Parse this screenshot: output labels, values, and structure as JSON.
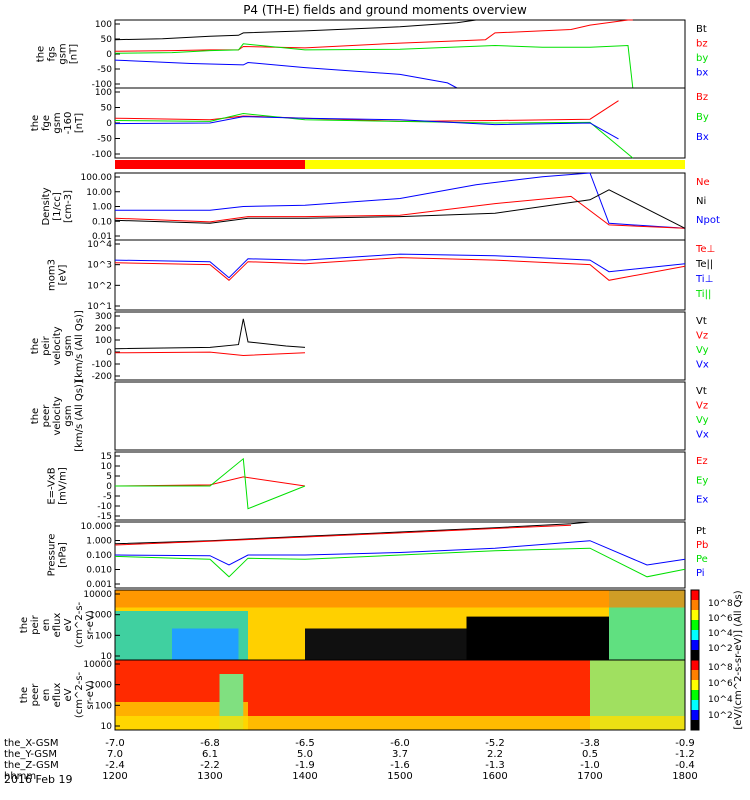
{
  "title": "P4 (TH-E) fields and ground moments overview",
  "date_label": "2016 Feb 19",
  "colors": {
    "black": "#000000",
    "red": "#ff0000",
    "green": "#00e000",
    "blue": "#0000ff",
    "yellow": "#ffff00",
    "bar_red": "#ff0000"
  },
  "chart_data": [
    {
      "type": "line",
      "id": "fgs",
      "ylabel": [
        "the",
        "fgs",
        "gsm",
        "[nT]"
      ],
      "ylim": [
        -100,
        100
      ],
      "ticks": [
        "100",
        "50",
        "0",
        "-50",
        "-100"
      ],
      "legend": [
        {
          "name": "Bt",
          "color": "black"
        },
        {
          "name": "bz",
          "color": "red"
        },
        {
          "name": "by",
          "color": "green"
        },
        {
          "name": "bx",
          "color": "blue"
        }
      ],
      "series": [
        {
          "name": "Bt",
          "color": "black",
          "x": [
            1200,
            1250,
            1300,
            1330,
            1335,
            1400,
            1500,
            1560,
            1580,
            1600
          ],
          "y": [
            42,
            45,
            52,
            55,
            62,
            68,
            80,
            92,
            100,
            100
          ]
        },
        {
          "name": "bz",
          "color": "red",
          "x": [
            1200,
            1260,
            1300,
            1330,
            1335,
            1400,
            1500,
            1590,
            1600,
            1680,
            1700,
            1740,
            1745
          ],
          "y": [
            8,
            10,
            12,
            12,
            22,
            18,
            32,
            42,
            62,
            72,
            85,
            100,
            100
          ]
        },
        {
          "name": "by",
          "color": "green",
          "x": [
            1200,
            1260,
            1300,
            1330,
            1335,
            1400,
            1500,
            1600,
            1650,
            1700,
            1740,
            1745
          ],
          "y": [
            2,
            4,
            10,
            12,
            30,
            12,
            14,
            25,
            20,
            20,
            25,
            -100
          ]
        },
        {
          "name": "bx",
          "color": "blue",
          "x": [
            1200,
            1280,
            1335,
            1340,
            1400,
            1500,
            1550,
            1560
          ],
          "y": [
            -18,
            -28,
            -32,
            -25,
            -40,
            -60,
            -85,
            -100
          ]
        }
      ]
    },
    {
      "type": "line",
      "id": "fge",
      "ylabel": [
        "the",
        "fge",
        "gsm",
        "-160",
        "[nT]"
      ],
      "ylim": [
        -120,
        100
      ],
      "ticks": [
        "100",
        "50",
        "0",
        "-50",
        "-100"
      ],
      "legend": [
        {
          "name": "Bz",
          "color": "red"
        },
        {
          "name": "By",
          "color": "green"
        },
        {
          "name": "Bx",
          "color": "blue"
        }
      ],
      "series": [
        {
          "name": "Bz",
          "color": "red",
          "x": [
            1200,
            1300,
            1335,
            1400,
            1500,
            1600,
            1700,
            1730
          ],
          "y": [
            5,
            0,
            12,
            5,
            -5,
            -2,
            2,
            60
          ]
        },
        {
          "name": "By",
          "color": "green",
          "x": [
            1200,
            1300,
            1335,
            1400,
            1500,
            1600,
            1700,
            1745
          ],
          "y": [
            -2,
            -5,
            20,
            0,
            -5,
            -10,
            -8,
            -120
          ]
        },
        {
          "name": "Bx",
          "color": "blue",
          "x": [
            1200,
            1300,
            1335,
            1400,
            1500,
            1600,
            1700,
            1730
          ],
          "y": [
            -12,
            -10,
            10,
            5,
            0,
            -15,
            -10,
            -60
          ]
        }
      ]
    },
    {
      "type": "bar",
      "id": "mode",
      "note": "status bar",
      "segments": [
        {
          "from": 1200,
          "to": 1400,
          "color": "bar_red"
        },
        {
          "from": 1400,
          "to": 1800,
          "color": "yellow"
        }
      ]
    },
    {
      "type": "line",
      "id": "density",
      "log": true,
      "ylabel": [
        "Density",
        "[1/cc]",
        "[cm-3]"
      ],
      "ylim": [
        0.01,
        100
      ],
      "ticks": [
        "100.00",
        "10.00",
        "1.00",
        "0.10",
        "0.01"
      ],
      "legend": [
        {
          "name": "Ne",
          "color": "red"
        },
        {
          "name": "Ni",
          "color": "black"
        },
        {
          "name": "Npot",
          "color": "blue"
        }
      ],
      "series": [
        {
          "name": "Npot",
          "color": "blue",
          "x": [
            1200,
            1300,
            1335,
            1400,
            1500,
            1580,
            1650,
            1700,
            1720,
            1800
          ],
          "y": [
            0.6,
            0.6,
            1.0,
            1.2,
            3,
            20,
            60,
            100,
            0.1,
            0.05
          ]
        },
        {
          "name": "Ne",
          "color": "red",
          "x": [
            1200,
            1300,
            1340,
            1400,
            1500,
            1600,
            1680,
            1720,
            1800
          ],
          "y": [
            0.2,
            0.12,
            0.25,
            0.25,
            0.3,
            1.5,
            4,
            0.08,
            0.05
          ]
        },
        {
          "name": "Ni",
          "color": "black",
          "x": [
            1200,
            1300,
            1340,
            1400,
            1500,
            1600,
            1700,
            1720,
            1800
          ],
          "y": [
            0.15,
            0.1,
            0.2,
            0.2,
            0.25,
            0.4,
            2.5,
            10,
            0.05
          ]
        }
      ]
    },
    {
      "type": "line",
      "id": "temp",
      "log": true,
      "ylabel": [
        "mom3",
        "[eV]"
      ],
      "ylim": [
        10,
        30000
      ],
      "ticks": [
        "10^4",
        "10^3",
        "10^2",
        "10^1"
      ],
      "legend": [
        {
          "name": "Te⊥",
          "color": "red"
        },
        {
          "name": "Te||",
          "color": "black"
        },
        {
          "name": "Ti⊥",
          "color": "blue"
        },
        {
          "name": "Ti||",
          "color": "green"
        }
      ],
      "series": [
        {
          "name": "Ti",
          "color": "blue",
          "x": [
            1200,
            1300,
            1320,
            1340,
            1400,
            1500,
            1600,
            1700,
            1720,
            1800
          ],
          "y": [
            3000,
            2500,
            400,
            3500,
            3000,
            6000,
            5000,
            3000,
            800,
            2000
          ]
        },
        {
          "name": "Te",
          "color": "red",
          "x": [
            1200,
            1300,
            1320,
            1340,
            1400,
            1500,
            1600,
            1700,
            1720,
            1800
          ],
          "y": [
            2200,
            1800,
            300,
            2500,
            2000,
            4000,
            3000,
            1800,
            300,
            1500
          ]
        }
      ]
    },
    {
      "type": "line",
      "id": "vpeir",
      "ylabel": [
        "the",
        "peir",
        "velocity",
        "gsm",
        "[km/s (All Qs)]"
      ],
      "ylim": [
        -200,
        300
      ],
      "ticks": [
        "300",
        "200",
        "100",
        "0",
        "-100",
        "-200"
      ],
      "legend": [
        {
          "name": "Vt",
          "color": "black"
        },
        {
          "name": "Vz",
          "color": "red"
        },
        {
          "name": "Vy",
          "color": "green"
        },
        {
          "name": "Vx",
          "color": "blue"
        }
      ],
      "series": [
        {
          "name": "Vt",
          "color": "black",
          "x": [
            1200,
            1300,
            1330,
            1335,
            1340,
            1380,
            1400
          ],
          "y": [
            30,
            40,
            60,
            250,
            80,
            50,
            40
          ]
        },
        {
          "name": "Vz",
          "color": "red",
          "x": [
            1200,
            1300,
            1335,
            1400
          ],
          "y": [
            0,
            5,
            -20,
            0
          ]
        }
      ]
    },
    {
      "type": "line",
      "id": "vpeer",
      "ylabel": [
        "the",
        "peer",
        "velocity",
        "gsm",
        "[km/s (All Qs)]"
      ],
      "ylim": [
        -200,
        300
      ],
      "legend": [
        {
          "name": "Vt",
          "color": "black"
        },
        {
          "name": "Vz",
          "color": "red"
        },
        {
          "name": "Vy",
          "color": "green"
        },
        {
          "name": "Vx",
          "color": "blue"
        }
      ],
      "series": []
    },
    {
      "type": "line",
      "id": "efield",
      "ylabel": [
        "E=-VxB",
        "[mV/m]"
      ],
      "ylim": [
        -15,
        15
      ],
      "ticks": [
        "15",
        "10",
        "5",
        "0",
        "-5",
        "-10",
        "-15"
      ],
      "legend": [
        {
          "name": "Ez",
          "color": "red"
        },
        {
          "name": "Ey",
          "color": "green"
        },
        {
          "name": "Ex",
          "color": "blue"
        }
      ],
      "series": [
        {
          "name": "Ez",
          "color": "red",
          "x": [
            1200,
            1300,
            1335,
            1400
          ],
          "y": [
            0,
            0.5,
            4,
            0
          ]
        },
        {
          "name": "Ey",
          "color": "green",
          "x": [
            1200,
            1300,
            1335,
            1340,
            1400
          ],
          "y": [
            0,
            0,
            12,
            -10,
            0
          ]
        }
      ]
    },
    {
      "type": "line",
      "id": "pressure",
      "log": true,
      "ylabel": [
        "Pressure",
        "[nPa]"
      ],
      "ylim": [
        0.0005,
        20
      ],
      "ticks": [
        "10.000",
        "1.000",
        "0.100",
        "0.010",
        "0.001"
      ],
      "legend": [
        {
          "name": "Pt",
          "color": "black"
        },
        {
          "name": "Pb",
          "color": "red"
        },
        {
          "name": "Pe",
          "color": "green"
        },
        {
          "name": "Pi",
          "color": "blue"
        }
      ],
      "series": [
        {
          "name": "Pt",
          "color": "black",
          "x": [
            1200,
            1300,
            1400,
            1500,
            1600,
            1680,
            1700
          ],
          "y": [
            0.6,
            1,
            2,
            4,
            8,
            15,
            20
          ]
        },
        {
          "name": "Pb",
          "color": "red",
          "x": [
            1200,
            1300,
            1400,
            1500,
            1600,
            1680
          ],
          "y": [
            0.5,
            0.9,
            1.8,
            3.5,
            7,
            12
          ]
        },
        {
          "name": "Pi",
          "color": "blue",
          "x": [
            1200,
            1300,
            1320,
            1340,
            1400,
            1500,
            1600,
            1700,
            1760,
            1800
          ],
          "y": [
            0.1,
            0.09,
            0.02,
            0.1,
            0.1,
            0.15,
            0.3,
            1,
            0.02,
            0.05
          ]
        },
        {
          "name": "Pe",
          "color": "green",
          "x": [
            1200,
            1300,
            1320,
            1340,
            1400,
            1500,
            1600,
            1700,
            1760,
            1800
          ],
          "y": [
            0.08,
            0.05,
            0.003,
            0.06,
            0.05,
            0.1,
            0.2,
            0.3,
            0.003,
            0.01
          ]
        }
      ]
    },
    {
      "type": "heatmap",
      "id": "peir_en",
      "ylabel": [
        "the",
        "peir",
        "en",
        "eflux",
        "eV",
        "(cm^2-s-",
        "sr-eV)"
      ],
      "ticks": [
        "10000",
        "1000",
        "100",
        "10"
      ]
    },
    {
      "type": "heatmap",
      "id": "peer_en",
      "ylabel": [
        "the",
        "peer",
        "en",
        "eflux",
        "eV",
        "(cm^2-s-",
        "sr-eV)"
      ],
      "ticks": [
        "10000",
        "1000",
        "100",
        "10"
      ]
    }
  ],
  "colorbar": {
    "label": "[eV/(cm^2-s-sr-eV)] (All Qs)",
    "ticks_top": [
      "10^8",
      "10^6",
      "10^4",
      "10^2"
    ],
    "ticks_bottom": [
      "10^8",
      "10^6",
      "10^4",
      "10^2"
    ]
  },
  "x_axis": {
    "rows": [
      {
        "label": "the_X-GSM",
        "values": [
          "-7.0",
          "-6.8",
          "-6.5",
          "-6.0",
          "-5.2",
          "-3.8",
          "-0.9"
        ]
      },
      {
        "label": "the_Y-GSM",
        "values": [
          "7.0",
          "6.1",
          "5.0",
          "3.7",
          "2.2",
          "0.5",
          "-1.2"
        ]
      },
      {
        "label": "the_Z-GSM",
        "values": [
          "-2.4",
          "-2.2",
          "-1.9",
          "-1.6",
          "-1.3",
          "-1.0",
          "-0.4"
        ]
      },
      {
        "label": "hhmm",
        "values": [
          "1200",
          "1300",
          "1400",
          "1500",
          "1600",
          "1700",
          "1800"
        ]
      }
    ]
  }
}
